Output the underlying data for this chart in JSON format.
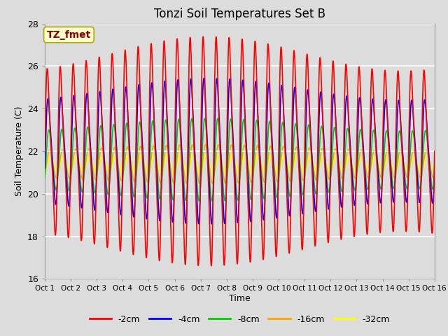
{
  "title": "Tonzi Soil Temperatures Set B",
  "xlabel": "Time",
  "ylabel": "Soil Temperature (C)",
  "ylim": [
    16,
    28
  ],
  "xlim": [
    0,
    15
  ],
  "annotation": "TZ_fmet",
  "annotation_color": "#8B0000",
  "annotation_bg": "#FFFFCC",
  "bg_color": "#DCDCDC",
  "fig_bg": "#DCDCDC",
  "grid_color": "#FFFFFF",
  "series_colors": [
    "#FF0000",
    "#0000FF",
    "#00CC00",
    "#FFA500",
    "#FFFF00"
  ],
  "series_labels": [
    "-2cm",
    "-4cm",
    "-8cm",
    "-16cm",
    "-32cm"
  ],
  "xtick_labels": [
    "Oct 1",
    "Oct 2",
    "Oct 3",
    "Oct 4",
    "Oct 5",
    "Oct 6",
    "Oct 7",
    "Oct 8",
    "Oct 9",
    "Oct 10",
    "Oct 11",
    "Oct 12",
    "Oct 13",
    "Oct 14",
    "Oct 15",
    "Oct 16"
  ],
  "xtick_positions": [
    0,
    1,
    2,
    3,
    4,
    5,
    6,
    7,
    8,
    9,
    10,
    11,
    12,
    13,
    14,
    15
  ],
  "ytick_positions": [
    16,
    18,
    20,
    22,
    24,
    26,
    28
  ],
  "linewidth": 1.2,
  "n_points": 4000,
  "freq_per_day": 2.0,
  "amp_2cm": 4.8,
  "amp_4cm": 3.2,
  "amp_8cm": 1.9,
  "amp_16cm": 0.9,
  "amp_32cm": 0.45,
  "mean_2cm": 22.0,
  "mean_4cm": 22.0,
  "mean_8cm": 21.6,
  "mean_16cm": 21.4,
  "mean_32cm": 21.4,
  "phase_2cm": 0.0,
  "phase_4cm": 0.25,
  "phase_8cm": 0.55,
  "phase_16cm": 0.85,
  "phase_32cm": 1.2
}
